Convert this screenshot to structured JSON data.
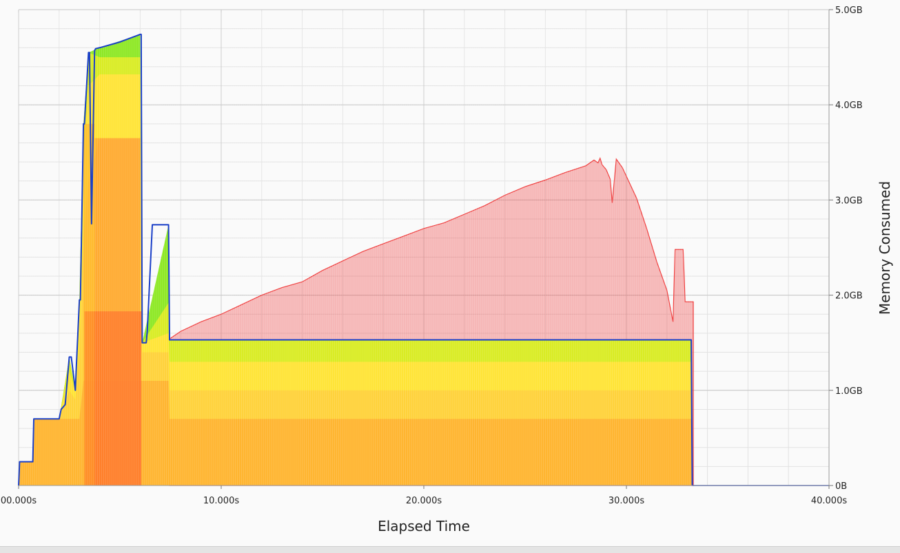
{
  "chart_data": {
    "type": "area",
    "title": "",
    "xlabel": "Elapsed Time",
    "ylabel": "Memory Consumed",
    "x_unit": "s",
    "y_unit": "GB",
    "xlim": [
      0,
      40
    ],
    "ylim": [
      0,
      5
    ],
    "grid": true,
    "x_ticks": [
      "00.000s",
      "10.000s",
      "20.000s",
      "30.000s",
      "40.000s"
    ],
    "y_ticks": [
      "0B",
      "1.0GB",
      "2.0GB",
      "3.0GB",
      "4.0GB",
      "5.0GB"
    ],
    "colors": {
      "background": "#fafafa",
      "grid": "#c6c6c6",
      "outline": "#1a3fc8",
      "committed": "#ef3a3a",
      "bands": [
        "#ffb530",
        "#ffa520",
        "#ff8a2a",
        "#ff6a2a",
        "#ffd23a",
        "#ffe436",
        "#d9ec24",
        "#8ee825"
      ]
    },
    "series": [
      {
        "role": "committed",
        "x": [
          7.45,
          8,
          9,
          10,
          11,
          12,
          13,
          14,
          15,
          16,
          17,
          18,
          19,
          20,
          21,
          22,
          23,
          24,
          25,
          26,
          27,
          28,
          28.4,
          28.6,
          28.7,
          28.8,
          29.0,
          29.2,
          29.3,
          29.5,
          29.8,
          30.5,
          31.0,
          31.5,
          32.0,
          32.3,
          32.4,
          32.6,
          32.8,
          32.9,
          33.0,
          33.3
        ],
        "y": [
          1.54,
          1.62,
          1.72,
          1.8,
          1.9,
          2.0,
          2.08,
          2.14,
          2.26,
          2.36,
          2.46,
          2.54,
          2.62,
          2.7,
          2.76,
          2.85,
          2.94,
          3.05,
          3.14,
          3.21,
          3.29,
          3.36,
          3.42,
          3.39,
          3.44,
          3.37,
          3.32,
          3.22,
          2.97,
          3.43,
          3.34,
          3.02,
          2.7,
          2.35,
          2.05,
          1.72,
          2.48,
          2.48,
          2.48,
          1.93,
          1.93,
          1.93
        ]
      },
      {
        "role": "total",
        "x": [
          0,
          0.05,
          0.7,
          0.75,
          2.0,
          2.05,
          2.1,
          2.3,
          2.5,
          2.55,
          2.6,
          2.8,
          2.85,
          3.0,
          3.05,
          3.2,
          3.25,
          3.45,
          3.5,
          3.6,
          3.75,
          3.8,
          4.0,
          5.0,
          6.0,
          6.05,
          6.1,
          6.3,
          6.35,
          6.6,
          7.0,
          7.4,
          7.45,
          33.2,
          33.25
        ],
        "y": [
          0,
          0.25,
          0.25,
          0.7,
          0.7,
          0.75,
          0.8,
          0.85,
          1.35,
          1.35,
          1.35,
          1.0,
          1.25,
          1.95,
          1.95,
          3.8,
          3.8,
          4.55,
          4.55,
          2.75,
          4.57,
          4.59,
          4.6,
          4.66,
          4.74,
          4.74,
          1.5,
          1.5,
          1.62,
          2.74,
          2.74,
          2.74,
          1.53,
          1.53,
          0
        ]
      },
      {
        "role": "layers",
        "x": [
          0,
          0.05,
          0.7,
          0.75,
          2.0,
          2.5,
          2.8,
          3.0,
          3.2,
          3.45,
          4.0,
          6.0,
          6.1,
          7.4,
          7.45,
          33.2,
          33.25
        ],
        "stacked_y": [
          [
            0,
            0.25,
            0.25,
            0.7,
            0.7,
            0.7,
            0.7,
            0.7,
            1.1,
            1.1,
            1.1,
            1.1,
            1.1,
            1.1,
            0.7,
            0.7,
            0
          ],
          [
            0,
            0.25,
            0.25,
            0.7,
            0.7,
            1.0,
            0.9,
            1.4,
            2.6,
            3.2,
            3.65,
            3.65,
            1.4,
            1.4,
            1.0,
            1.0,
            0
          ],
          [
            0,
            0.25,
            0.25,
            0.7,
            0.7,
            1.2,
            1.0,
            1.8,
            3.5,
            4.2,
            4.32,
            4.32,
            1.5,
            1.6,
            1.3,
            1.3,
            0
          ],
          [
            0,
            0.25,
            0.25,
            0.7,
            0.7,
            1.35,
            1.0,
            1.95,
            3.8,
            4.55,
            4.5,
            4.5,
            1.5,
            1.92,
            1.53,
            1.53,
            0
          ],
          [
            0,
            0.25,
            0.25,
            0.7,
            0.7,
            1.35,
            1.0,
            1.95,
            3.8,
            4.55,
            4.6,
            4.74,
            1.5,
            2.74,
            1.53,
            1.53,
            0
          ]
        ],
        "overlays": [
          {
            "x0": 3.25,
            "x1": 6.05,
            "y": 1.83
          },
          {
            "x0": 3.75,
            "x1": 6.0,
            "y": 3.65
          },
          {
            "x0": 3.2,
            "x1": 3.75,
            "y": 3.8
          }
        ]
      }
    ]
  }
}
